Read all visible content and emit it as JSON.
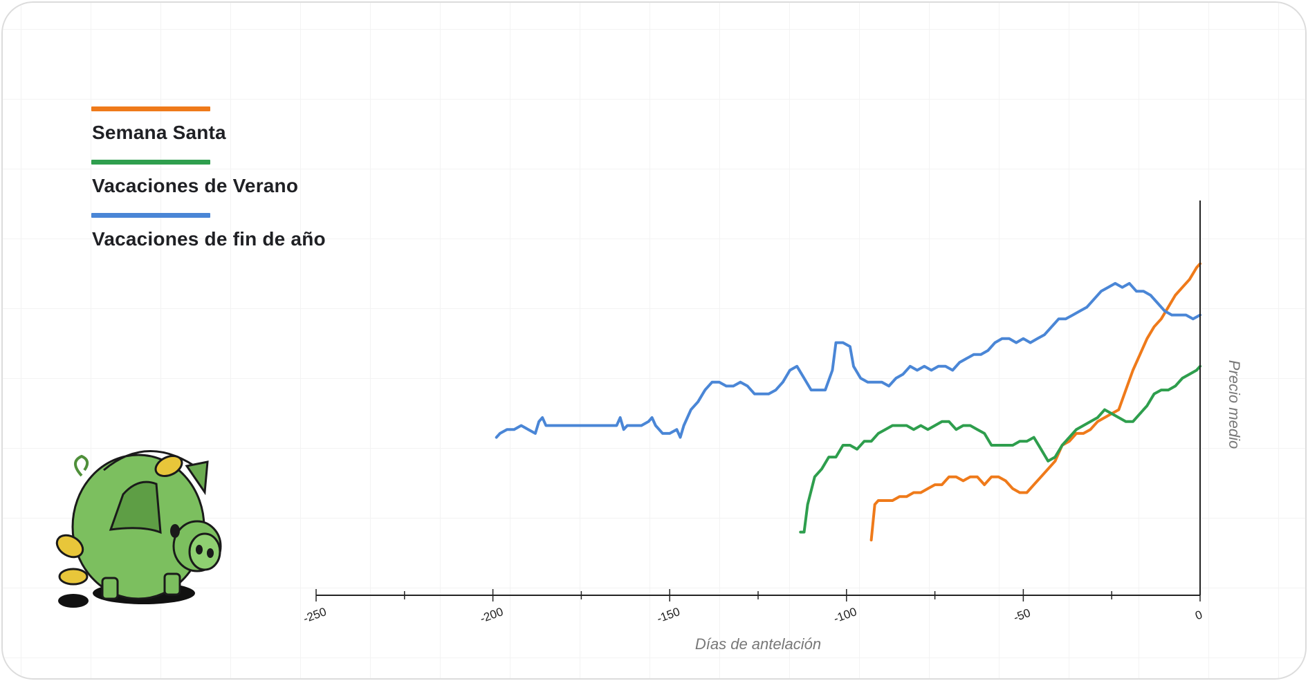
{
  "chart_data": {
    "type": "line",
    "title": "",
    "xlabel": "Días de antelación",
    "ylabel": "Precio medio",
    "xlim": [
      -250,
      0
    ],
    "ylim": [
      0,
      100
    ],
    "grid": true,
    "legend_position": "top-left",
    "x_ticks": [
      "-250",
      "-200",
      "-150",
      "-100",
      "-50",
      "0"
    ],
    "x_tick_values": [
      -250,
      -200,
      -150,
      -100,
      -50,
      0
    ],
    "series": [
      {
        "name": "Semana Santa",
        "color": "#ef7a1a",
        "points": [
          [
            -93,
            14
          ],
          [
            -92,
            23
          ],
          [
            -91,
            24
          ],
          [
            -89,
            24
          ],
          [
            -87,
            24
          ],
          [
            -85,
            25
          ],
          [
            -83,
            25
          ],
          [
            -81,
            26
          ],
          [
            -79,
            26
          ],
          [
            -77,
            27
          ],
          [
            -75,
            28
          ],
          [
            -73,
            28
          ],
          [
            -71,
            30
          ],
          [
            -69,
            30
          ],
          [
            -67,
            29
          ],
          [
            -65,
            30
          ],
          [
            -63,
            30
          ],
          [
            -61,
            28
          ],
          [
            -59,
            30
          ],
          [
            -57,
            30
          ],
          [
            -55,
            29
          ],
          [
            -53,
            27
          ],
          [
            -51,
            26
          ],
          [
            -49,
            26
          ],
          [
            -47,
            28
          ],
          [
            -45,
            30
          ],
          [
            -43,
            32
          ],
          [
            -41,
            34
          ],
          [
            -39,
            38
          ],
          [
            -37,
            39
          ],
          [
            -35,
            41
          ],
          [
            -33,
            41
          ],
          [
            -31,
            42
          ],
          [
            -29,
            44
          ],
          [
            -27,
            45
          ],
          [
            -25,
            46
          ],
          [
            -23,
            47
          ],
          [
            -21,
            52
          ],
          [
            -19,
            57
          ],
          [
            -17,
            61
          ],
          [
            -15,
            65
          ],
          [
            -13,
            68
          ],
          [
            -11,
            70
          ],
          [
            -9,
            73
          ],
          [
            -7,
            76
          ],
          [
            -5,
            78
          ],
          [
            -3,
            80
          ],
          [
            -1,
            83
          ],
          [
            0,
            84
          ]
        ]
      },
      {
        "name": "Vacaciones de Verano",
        "color": "#2e9e4d",
        "points": [
          [
            -113,
            16
          ],
          [
            -112,
            16
          ],
          [
            -111,
            23
          ],
          [
            -109,
            30
          ],
          [
            -107,
            32
          ],
          [
            -105,
            35
          ],
          [
            -103,
            35
          ],
          [
            -101,
            38
          ],
          [
            -99,
            38
          ],
          [
            -97,
            37
          ],
          [
            -95,
            39
          ],
          [
            -93,
            39
          ],
          [
            -91,
            41
          ],
          [
            -89,
            42
          ],
          [
            -87,
            43
          ],
          [
            -85,
            43
          ],
          [
            -83,
            43
          ],
          [
            -81,
            42
          ],
          [
            -79,
            43
          ],
          [
            -77,
            42
          ],
          [
            -75,
            43
          ],
          [
            -73,
            44
          ],
          [
            -71,
            44
          ],
          [
            -69,
            42
          ],
          [
            -67,
            43
          ],
          [
            -65,
            43
          ],
          [
            -63,
            42
          ],
          [
            -61,
            41
          ],
          [
            -59,
            38
          ],
          [
            -57,
            38
          ],
          [
            -55,
            38
          ],
          [
            -53,
            38
          ],
          [
            -51,
            39
          ],
          [
            -49,
            39
          ],
          [
            -47,
            40
          ],
          [
            -45,
            37
          ],
          [
            -43,
            34
          ],
          [
            -41,
            35
          ],
          [
            -39,
            38
          ],
          [
            -37,
            40
          ],
          [
            -35,
            42
          ],
          [
            -33,
            43
          ],
          [
            -31,
            44
          ],
          [
            -29,
            45
          ],
          [
            -27,
            47
          ],
          [
            -25,
            46
          ],
          [
            -23,
            45
          ],
          [
            -21,
            44
          ],
          [
            -19,
            44
          ],
          [
            -17,
            46
          ],
          [
            -15,
            48
          ],
          [
            -13,
            51
          ],
          [
            -11,
            52
          ],
          [
            -9,
            52
          ],
          [
            -7,
            53
          ],
          [
            -5,
            55
          ],
          [
            -3,
            56
          ],
          [
            -1,
            57
          ],
          [
            0,
            58
          ]
        ]
      },
      {
        "name": "Vacaciones de fin de año",
        "color": "#4a86d6",
        "points": [
          [
            -199,
            40
          ],
          [
            -198,
            41
          ],
          [
            -196,
            42
          ],
          [
            -194,
            42
          ],
          [
            -192,
            43
          ],
          [
            -190,
            42
          ],
          [
            -188,
            41
          ],
          [
            -187,
            44
          ],
          [
            -186,
            45
          ],
          [
            -185,
            43
          ],
          [
            -183,
            43
          ],
          [
            -180,
            43
          ],
          [
            -176,
            43
          ],
          [
            -172,
            43
          ],
          [
            -168,
            43
          ],
          [
            -165,
            43
          ],
          [
            -164,
            45
          ],
          [
            -163,
            42
          ],
          [
            -162,
            43
          ],
          [
            -160,
            43
          ],
          [
            -158,
            43
          ],
          [
            -156,
            44
          ],
          [
            -155,
            45
          ],
          [
            -154,
            43
          ],
          [
            -152,
            41
          ],
          [
            -150,
            41
          ],
          [
            -148,
            42
          ],
          [
            -147,
            40
          ],
          [
            -146,
            43
          ],
          [
            -144,
            47
          ],
          [
            -142,
            49
          ],
          [
            -140,
            52
          ],
          [
            -138,
            54
          ],
          [
            -136,
            54
          ],
          [
            -134,
            53
          ],
          [
            -132,
            53
          ],
          [
            -130,
            54
          ],
          [
            -128,
            53
          ],
          [
            -126,
            51
          ],
          [
            -124,
            51
          ],
          [
            -122,
            51
          ],
          [
            -120,
            52
          ],
          [
            -118,
            54
          ],
          [
            -116,
            57
          ],
          [
            -114,
            58
          ],
          [
            -112,
            55
          ],
          [
            -110,
            52
          ],
          [
            -108,
            52
          ],
          [
            -106,
            52
          ],
          [
            -104,
            57
          ],
          [
            -103,
            64
          ],
          [
            -101,
            64
          ],
          [
            -99,
            63
          ],
          [
            -98,
            58
          ],
          [
            -96,
            55
          ],
          [
            -94,
            54
          ],
          [
            -92,
            54
          ],
          [
            -90,
            54
          ],
          [
            -88,
            53
          ],
          [
            -86,
            55
          ],
          [
            -84,
            56
          ],
          [
            -82,
            58
          ],
          [
            -80,
            57
          ],
          [
            -78,
            58
          ],
          [
            -76,
            57
          ],
          [
            -74,
            58
          ],
          [
            -72,
            58
          ],
          [
            -70,
            57
          ],
          [
            -68,
            59
          ],
          [
            -66,
            60
          ],
          [
            -64,
            61
          ],
          [
            -62,
            61
          ],
          [
            -60,
            62
          ],
          [
            -58,
            64
          ],
          [
            -56,
            65
          ],
          [
            -54,
            65
          ],
          [
            -52,
            64
          ],
          [
            -50,
            65
          ],
          [
            -48,
            64
          ],
          [
            -46,
            65
          ],
          [
            -44,
            66
          ],
          [
            -42,
            68
          ],
          [
            -40,
            70
          ],
          [
            -38,
            70
          ],
          [
            -36,
            71
          ],
          [
            -34,
            72
          ],
          [
            -32,
            73
          ],
          [
            -30,
            75
          ],
          [
            -28,
            77
          ],
          [
            -26,
            78
          ],
          [
            -24,
            79
          ],
          [
            -22,
            78
          ],
          [
            -20,
            79
          ],
          [
            -18,
            77
          ],
          [
            -16,
            77
          ],
          [
            -14,
            76
          ],
          [
            -12,
            74
          ],
          [
            -10,
            72
          ],
          [
            -8,
            71
          ],
          [
            -6,
            71
          ],
          [
            -4,
            71
          ],
          [
            -2,
            70
          ],
          [
            0,
            71
          ]
        ]
      }
    ]
  }
}
